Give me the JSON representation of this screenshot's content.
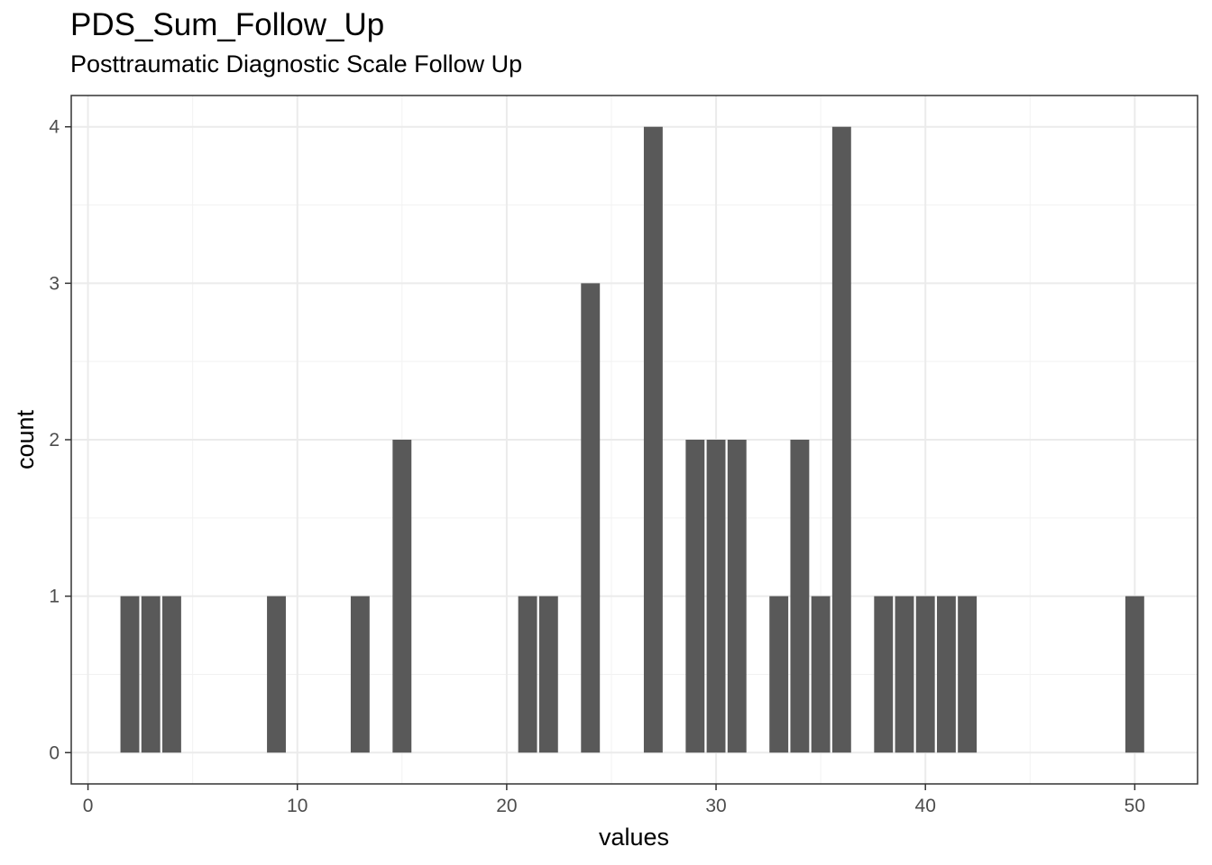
{
  "chart_data": {
    "type": "bar",
    "title": "PDS_Sum_Follow_Up",
    "subtitle": "Posttraumatic Diagnostic Scale Follow Up",
    "xlabel": "values",
    "ylabel": "count",
    "xlim": [
      -0.8,
      53.0
    ],
    "ylim": [
      -0.2,
      4.2
    ],
    "x_ticks": [
      0,
      10,
      20,
      30,
      40,
      50
    ],
    "y_ticks": [
      0,
      1,
      2,
      3,
      4
    ],
    "grid": true,
    "bar_color": "#595959",
    "bars": [
      {
        "x": 2,
        "count": 1
      },
      {
        "x": 3,
        "count": 1
      },
      {
        "x": 4,
        "count": 1
      },
      {
        "x": 9,
        "count": 1
      },
      {
        "x": 13,
        "count": 1
      },
      {
        "x": 15,
        "count": 2
      },
      {
        "x": 21,
        "count": 1
      },
      {
        "x": 22,
        "count": 1
      },
      {
        "x": 24,
        "count": 3
      },
      {
        "x": 27,
        "count": 4
      },
      {
        "x": 29,
        "count": 2
      },
      {
        "x": 30,
        "count": 2
      },
      {
        "x": 31,
        "count": 2
      },
      {
        "x": 33,
        "count": 1
      },
      {
        "x": 34,
        "count": 2
      },
      {
        "x": 35,
        "count": 1
      },
      {
        "x": 36,
        "count": 4
      },
      {
        "x": 38,
        "count": 1
      },
      {
        "x": 39,
        "count": 1
      },
      {
        "x": 40,
        "count": 1
      },
      {
        "x": 41,
        "count": 1
      },
      {
        "x": 42,
        "count": 1
      },
      {
        "x": 50,
        "count": 1
      }
    ]
  }
}
